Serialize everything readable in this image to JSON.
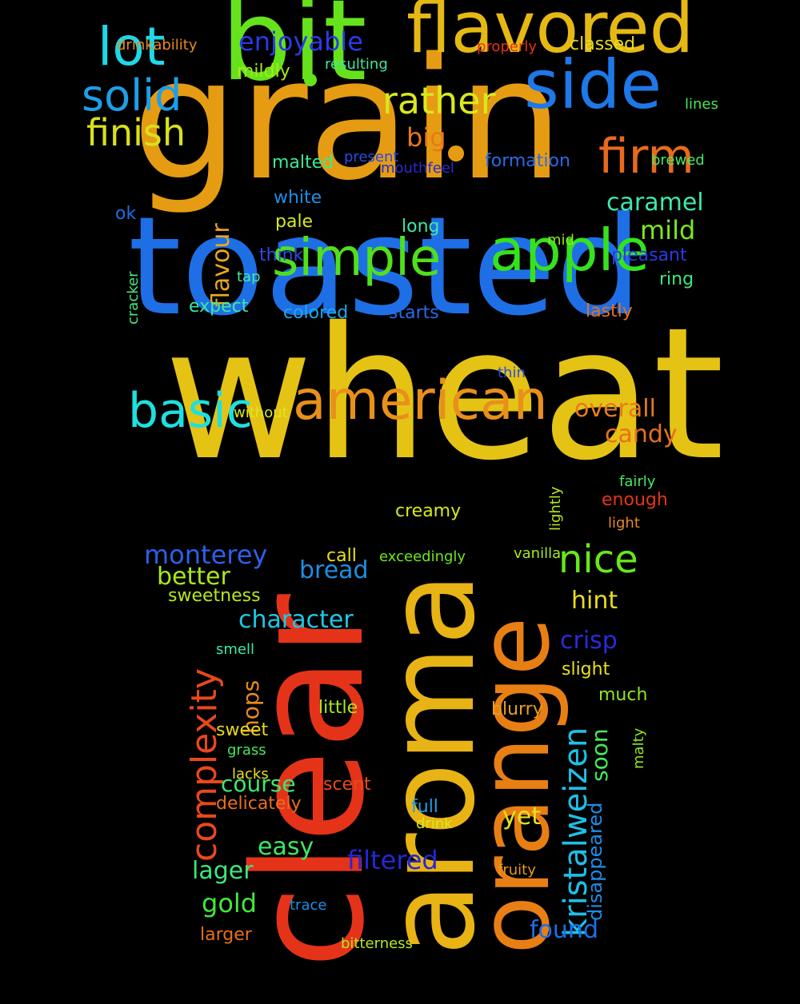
{
  "words": [
    {
      "text": "wheat",
      "color": "#e5c315"
    },
    {
      "text": "grain",
      "color": "#e69c12"
    },
    {
      "text": "toasted",
      "color": "#1e6fe6"
    },
    {
      "text": "clear",
      "color": "#e5331a"
    },
    {
      "text": "aroma",
      "color": "#e8b314"
    },
    {
      "text": "orange",
      "color": "#e87f14"
    },
    {
      "text": "bit",
      "color": "#66e21c"
    },
    {
      "text": "flavored",
      "color": "#e5b814"
    },
    {
      "text": "side",
      "color": "#1e78e8"
    },
    {
      "text": "american",
      "color": "#e8901a"
    },
    {
      "text": "apple",
      "color": "#34e21e"
    },
    {
      "text": "simple",
      "color": "#50e01c"
    },
    {
      "text": "basic",
      "color": "#1ee0e0"
    },
    {
      "text": "lot",
      "color": "#1ed8e8"
    },
    {
      "text": "solid",
      "color": "#1e9ee8"
    },
    {
      "text": "firm",
      "color": "#e86a1c"
    },
    {
      "text": "rather",
      "color": "#d8e81c"
    },
    {
      "text": "finish",
      "color": "#d9e01c"
    },
    {
      "text": "nice",
      "color": "#66e81c"
    },
    {
      "text": "complexity",
      "color": "#e8481c"
    },
    {
      "text": "kristalweizen",
      "color": "#1ec0e8"
    },
    {
      "text": "enjoyable",
      "color": "#2b3ae8"
    },
    {
      "text": "caramel",
      "color": "#3ce8b0"
    },
    {
      "text": "mild",
      "color": "#7ce81c"
    },
    {
      "text": "overall",
      "color": "#e87b1c"
    },
    {
      "text": "candy",
      "color": "#e8701c"
    },
    {
      "text": "monterey",
      "color": "#2b60e8"
    },
    {
      "text": "better",
      "color": "#a8e81c"
    },
    {
      "text": "hint",
      "color": "#e8dc1c"
    },
    {
      "text": "crisp",
      "color": "#2a2ae0"
    },
    {
      "text": "bread",
      "color": "#1e8ee0"
    },
    {
      "text": "character",
      "color": "#1ec8e8"
    },
    {
      "text": "filtered",
      "color": "#2626d8"
    },
    {
      "text": "found",
      "color": "#1e6ee8"
    },
    {
      "text": "big",
      "color": "#e8781c"
    },
    {
      "text": "flavour",
      "color": "#e8a81c"
    },
    {
      "text": "hops",
      "color": "#e88a1c"
    },
    {
      "text": "soon",
      "color": "#44e85c"
    },
    {
      "text": "course",
      "color": "#3ce870"
    },
    {
      "text": "easy",
      "color": "#3ce860"
    },
    {
      "text": "lager",
      "color": "#3ce87a"
    },
    {
      "text": "gold",
      "color": "#44e83c"
    },
    {
      "text": "yet",
      "color": "#e8e01c"
    },
    {
      "text": "disappeared",
      "color": "#1e8ee8"
    },
    {
      "text": "drinkability",
      "color": "#e88a1c"
    },
    {
      "text": "properly",
      "color": "#e8331c"
    },
    {
      "text": "classed",
      "color": "#e8dc1c"
    },
    {
      "text": "mildly",
      "color": "#a8e81c"
    },
    {
      "text": "resulting",
      "color": "#3ce8a0"
    },
    {
      "text": "lines",
      "color": "#44e85c"
    },
    {
      "text": "malted",
      "color": "#3ce890"
    },
    {
      "text": "present",
      "color": "#2a4ae8"
    },
    {
      "text": "mouthfeel",
      "color": "#2a2ad8"
    },
    {
      "text": "formation",
      "color": "#2a6ae8"
    },
    {
      "text": "brewed",
      "color": "#44e86a"
    },
    {
      "text": "white",
      "color": "#1e8ee8"
    },
    {
      "text": "pale",
      "color": "#d8e81c"
    },
    {
      "text": "ok",
      "color": "#1e6ee8"
    },
    {
      "text": "long",
      "color": "#3ce8a8"
    },
    {
      "text": "mid",
      "color": "#8ce81c"
    },
    {
      "text": "think",
      "color": "#2a4ae8"
    },
    {
      "text": "pleasant",
      "color": "#2a3ae8"
    },
    {
      "text": "tap",
      "color": "#44e8a8"
    },
    {
      "text": "ring",
      "color": "#3ce87a"
    },
    {
      "text": "cracker",
      "color": "#44e880"
    },
    {
      "text": "expect",
      "color": "#3ce8a0"
    },
    {
      "text": "colored",
      "color": "#1ea8e8"
    },
    {
      "text": "starts",
      "color": "#2a6ae8"
    },
    {
      "text": "lastly",
      "color": "#e8701c"
    },
    {
      "text": "thin",
      "color": "#2a4ae8"
    },
    {
      "text": "without",
      "color": "#d8e81c"
    },
    {
      "text": "fairly",
      "color": "#44e86a"
    },
    {
      "text": "lightly",
      "color": "#b8e81c"
    },
    {
      "text": "enough",
      "color": "#e8331c"
    },
    {
      "text": "light",
      "color": "#e88a1c"
    },
    {
      "text": "creamy",
      "color": "#d8e81c"
    },
    {
      "text": "call",
      "color": "#e8e01c"
    },
    {
      "text": "exceedingly",
      "color": "#6ce81c"
    },
    {
      "text": "vanilla",
      "color": "#a8e81c"
    },
    {
      "text": "sweetness",
      "color": "#b8e81c"
    },
    {
      "text": "smell",
      "color": "#3ce8a8"
    },
    {
      "text": "slight",
      "color": "#e8e01c"
    },
    {
      "text": "much",
      "color": "#8ce81c"
    },
    {
      "text": "malty",
      "color": "#8ce81c"
    },
    {
      "text": "little",
      "color": "#a8e81c"
    },
    {
      "text": "blurry",
      "color": "#e8a01c"
    },
    {
      "text": "sweet",
      "color": "#e8d81c"
    },
    {
      "text": "grass",
      "color": "#44e85c"
    },
    {
      "text": "lacks",
      "color": "#e8e01c"
    },
    {
      "text": "scent",
      "color": "#e84a1c"
    },
    {
      "text": "delicately",
      "color": "#e8701c"
    },
    {
      "text": "full",
      "color": "#1e9ee8"
    },
    {
      "text": "drink",
      "color": "#d8e81c"
    },
    {
      "text": "fruity",
      "color": "#e8981c"
    },
    {
      "text": "trace",
      "color": "#1e8ee8"
    },
    {
      "text": "larger",
      "color": "#e8701c"
    },
    {
      "text": "bitterness",
      "color": "#b8e81c"
    }
  ],
  "dots": [
    {
      "color": "#66e21c"
    },
    {
      "color": "#e69c12"
    }
  ]
}
